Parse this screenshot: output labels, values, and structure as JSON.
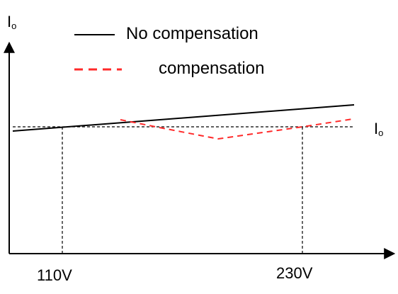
{
  "y_axis_label": {
    "main": "I",
    "sub": "o"
  },
  "reference_label": {
    "main": "I",
    "sub": "o"
  },
  "legend": [
    {
      "label": "No compensation",
      "style": "solid",
      "color": "#000000"
    },
    {
      "label": "compensation",
      "style": "dashed",
      "color": "#ff2a2a"
    }
  ],
  "x_ticks": [
    "110V",
    "230V"
  ],
  "colors": {
    "no_compensation": "#000000",
    "compensation": "#ff2a2a",
    "axis": "#000000"
  }
}
